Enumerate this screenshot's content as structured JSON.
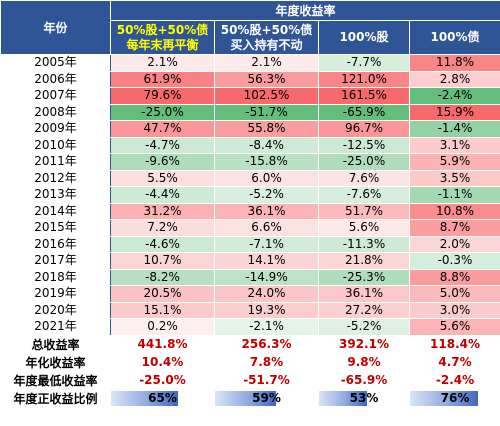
{
  "chart_data": {
    "type": "table",
    "title": "年度收益率",
    "header": {
      "year_label": "年份",
      "group_label": "年度收益率",
      "columns": [
        {
          "line1": "50%股+50%债",
          "line2": "每年末再平衡",
          "highlight": true
        },
        {
          "line1": "50%股+50%债",
          "line2": "买入持有不动",
          "highlight": false
        },
        {
          "line1": "100%股",
          "line2": "",
          "highlight": false
        },
        {
          "line1": "100%债",
          "line2": "",
          "highlight": false
        }
      ]
    },
    "rows": [
      {
        "year": "2005年",
        "values": [
          "2.1%",
          "2.1%",
          "-7.7%",
          "11.8%"
        ],
        "nums": [
          2.1,
          2.1,
          -7.7,
          11.8
        ]
      },
      {
        "year": "2006年",
        "values": [
          "61.9%",
          "56.3%",
          "121.0%",
          "2.8%"
        ],
        "nums": [
          61.9,
          56.3,
          121.0,
          2.8
        ]
      },
      {
        "year": "2007年",
        "values": [
          "79.6%",
          "102.5%",
          "161.5%",
          "-2.4%"
        ],
        "nums": [
          79.6,
          102.5,
          161.5,
          -2.4
        ]
      },
      {
        "year": "2008年",
        "values": [
          "-25.0%",
          "-51.7%",
          "-65.9%",
          "15.9%"
        ],
        "nums": [
          -25.0,
          -51.7,
          -65.9,
          15.9
        ]
      },
      {
        "year": "2009年",
        "values": [
          "47.7%",
          "55.8%",
          "96.7%",
          "-1.4%"
        ],
        "nums": [
          47.7,
          55.8,
          96.7,
          -1.4
        ]
      },
      {
        "year": "2010年",
        "values": [
          "-4.7%",
          "-8.4%",
          "-12.5%",
          "3.1%"
        ],
        "nums": [
          -4.7,
          -8.4,
          -12.5,
          3.1
        ]
      },
      {
        "year": "2011年",
        "values": [
          "-9.6%",
          "-15.8%",
          "-25.0%",
          "5.9%"
        ],
        "nums": [
          -9.6,
          -15.8,
          -25.0,
          5.9
        ]
      },
      {
        "year": "2012年",
        "values": [
          "5.5%",
          "6.0%",
          "7.6%",
          "3.5%"
        ],
        "nums": [
          5.5,
          6.0,
          7.6,
          3.5
        ]
      },
      {
        "year": "2013年",
        "values": [
          "-4.4%",
          "-5.2%",
          "-7.6%",
          "-1.1%"
        ],
        "nums": [
          -4.4,
          -5.2,
          -7.6,
          -1.1
        ]
      },
      {
        "year": "2014年",
        "values": [
          "31.2%",
          "36.1%",
          "51.7%",
          "10.8%"
        ],
        "nums": [
          31.2,
          36.1,
          51.7,
          10.8
        ]
      },
      {
        "year": "2015年",
        "values": [
          "7.2%",
          "6.6%",
          "5.6%",
          "8.7%"
        ],
        "nums": [
          7.2,
          6.6,
          5.6,
          8.7
        ]
      },
      {
        "year": "2016年",
        "values": [
          "-4.6%",
          "-7.1%",
          "-11.3%",
          "2.0%"
        ],
        "nums": [
          -4.6,
          -7.1,
          -11.3,
          2.0
        ]
      },
      {
        "year": "2017年",
        "values": [
          "10.7%",
          "14.1%",
          "21.8%",
          "-0.3%"
        ],
        "nums": [
          10.7,
          14.1,
          21.8,
          -0.3
        ]
      },
      {
        "year": "2018年",
        "values": [
          "-8.2%",
          "-14.9%",
          "-25.3%",
          "8.8%"
        ],
        "nums": [
          -8.2,
          -14.9,
          -25.3,
          8.8
        ]
      },
      {
        "year": "2019年",
        "values": [
          "20.5%",
          "24.0%",
          "36.1%",
          "5.0%"
        ],
        "nums": [
          20.5,
          24.0,
          36.1,
          5.0
        ]
      },
      {
        "year": "2020年",
        "values": [
          "15.1%",
          "19.3%",
          "27.2%",
          "3.0%"
        ],
        "nums": [
          15.1,
          19.3,
          27.2,
          3.0
        ]
      },
      {
        "year": "2021年",
        "values": [
          "0.2%",
          "-2.1%",
          "-5.2%",
          "5.6%"
        ],
        "nums": [
          0.2,
          -2.1,
          -5.2,
          5.6
        ]
      }
    ],
    "summary": [
      {
        "label": "总收益率",
        "values": [
          "441.8%",
          "256.3%",
          "392.1%",
          "118.4%"
        ]
      },
      {
        "label": "年化收益率",
        "values": [
          "10.4%",
          "7.8%",
          "9.8%",
          "4.7%"
        ]
      },
      {
        "label": "年度最低收益率",
        "values": [
          "-25.0%",
          "-51.7%",
          "-65.9%",
          "-2.4%"
        ]
      }
    ],
    "positive_ratio": {
      "label": "年度正收益比例",
      "values": [
        "65%",
        "59%",
        "53%",
        "76%"
      ],
      "nums": [
        65,
        59,
        53,
        76
      ]
    },
    "colors": {
      "header_bg": "#2f5597",
      "header_text": "#ffffff",
      "header_highlight": "#ffff00",
      "positive": "#f8696b",
      "negative": "#63be7b",
      "summary_text": "#c00000"
    }
  }
}
